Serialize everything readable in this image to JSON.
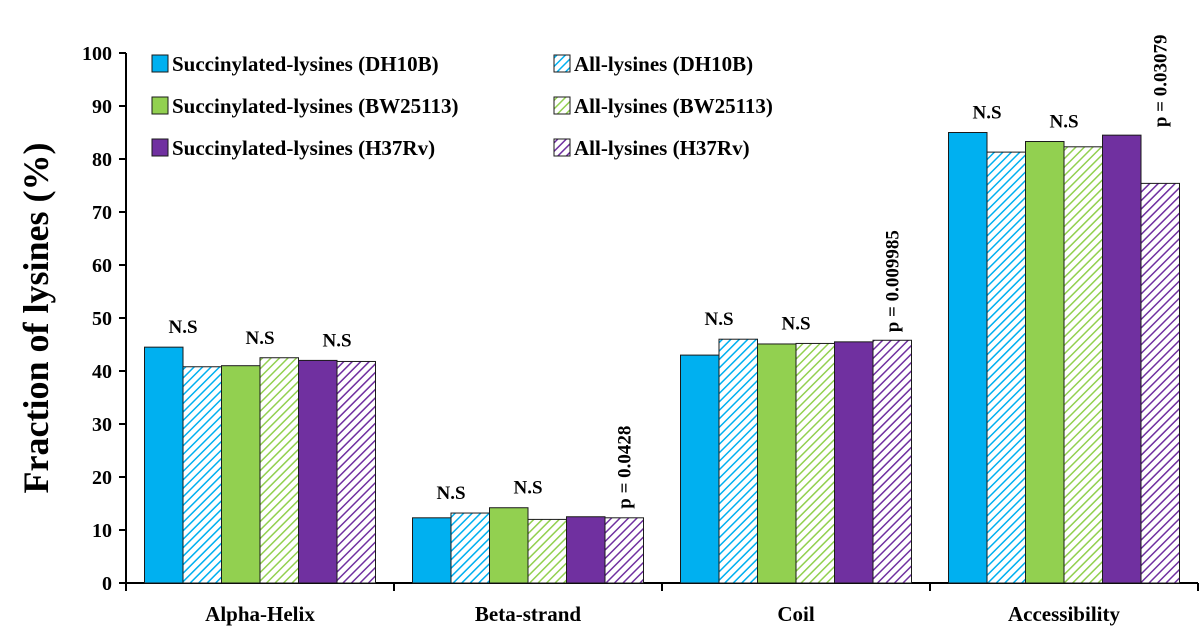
{
  "chart_data": {
    "type": "bar",
    "ylabel": "Fraction of lysines (%)",
    "xlabel": "",
    "ylim": [
      0,
      100
    ],
    "yticks": [
      0,
      10,
      20,
      30,
      40,
      50,
      60,
      70,
      80,
      90,
      100
    ],
    "grid": false,
    "legend_position": "top-left",
    "categories": [
      "Alpha-Helix",
      "Beta-strand",
      "Coil",
      "Accessibility"
    ],
    "series": [
      {
        "name": "Succinylated-lysines (DH10B)",
        "color": "#00b0f0",
        "pattern": "solid",
        "values": [
          44.5,
          12.3,
          43.0,
          85.0
        ]
      },
      {
        "name": "All-lysines (DH10B)",
        "color": "#00b0f0",
        "pattern": "hatched",
        "values": [
          40.8,
          13.2,
          46.0,
          81.3
        ]
      },
      {
        "name": "Succinylated-lysines (BW25113)",
        "color": "#92d050",
        "pattern": "solid",
        "values": [
          41.0,
          14.2,
          45.1,
          83.3
        ]
      },
      {
        "name": "All-lysines (BW25113)",
        "color": "#92d050",
        "pattern": "hatched",
        "values": [
          42.5,
          12.0,
          45.2,
          82.3
        ]
      },
      {
        "name": "Succinylated-lysines (H37Rv)",
        "color": "#7030a0",
        "pattern": "solid",
        "values": [
          42.0,
          12.5,
          45.5,
          84.5
        ]
      },
      {
        "name": "All-lysines (H37Rv)",
        "color": "#7030a0",
        "pattern": "hatched",
        "values": [
          41.8,
          12.3,
          45.8,
          75.4
        ]
      }
    ],
    "annotations": [
      {
        "category": "Alpha-Helix",
        "pair": 0,
        "text": "N.S"
      },
      {
        "category": "Alpha-Helix",
        "pair": 1,
        "text": "N.S"
      },
      {
        "category": "Alpha-Helix",
        "pair": 2,
        "text": "N.S"
      },
      {
        "category": "Beta-strand",
        "pair": 0,
        "text": "N.S"
      },
      {
        "category": "Beta-strand",
        "pair": 1,
        "text": "N.S"
      },
      {
        "category": "Beta-strand",
        "pair": 2,
        "text": "p = 0.0428",
        "rotated": true
      },
      {
        "category": "Coil",
        "pair": 0,
        "text": "N.S"
      },
      {
        "category": "Coil",
        "pair": 1,
        "text": "N.S"
      },
      {
        "category": "Coil",
        "pair": 2,
        "text": "p = 0.009985",
        "rotated": true
      },
      {
        "category": "Accessibility",
        "pair": 0,
        "text": "N.S"
      },
      {
        "category": "Accessibility",
        "pair": 1,
        "text": "N.S"
      },
      {
        "category": "Accessibility",
        "pair": 2,
        "text": "p = 0.03079",
        "rotated": true
      }
    ]
  }
}
